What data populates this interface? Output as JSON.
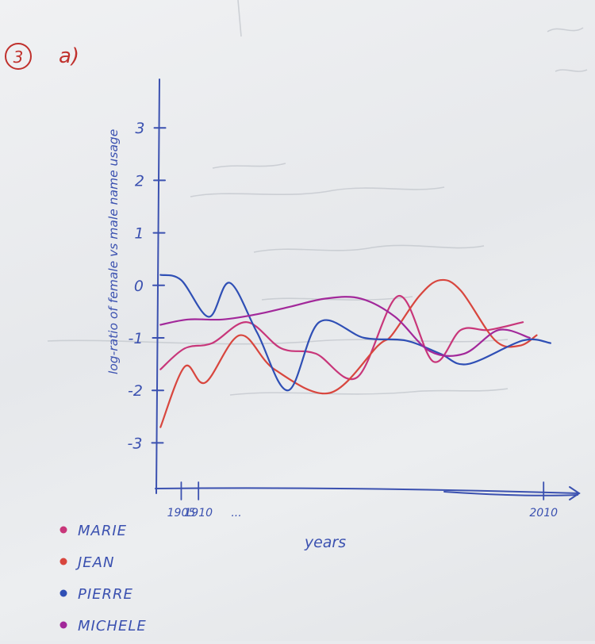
{
  "heading": {
    "number": "3",
    "part": "a)"
  },
  "chart_data": {
    "type": "line",
    "ylabel": "log-ratio of female vs male name usage",
    "xlabel": "years",
    "ylim": [
      -3.9,
      4
    ],
    "yticks": [
      "3",
      "2",
      "1",
      "0",
      "-1",
      "-2",
      "-3"
    ],
    "ytick_values": [
      3,
      2,
      1,
      0,
      -1,
      -2,
      -3
    ],
    "xlim": [
      1898,
      2018
    ],
    "xtick_labels": [
      {
        "label": "1905",
        "x": 1905
      },
      {
        "label": "1910",
        "x": 1910
      },
      {
        "label": "...",
        "x": 1921
      },
      {
        "label": "2010",
        "x": 2010
      }
    ],
    "series": [
      {
        "name": "MARIE",
        "color": "#c8367a",
        "x": [
          1899,
          1906,
          1914,
          1924,
          1934,
          1944,
          1956,
          1968,
          1978,
          1986,
          1994,
          2004
        ],
        "y": [
          -1.6,
          -1.2,
          -1.1,
          -0.7,
          -1.2,
          -1.3,
          -1.75,
          -0.2,
          -1.45,
          -0.85,
          -0.85,
          -0.7
        ]
      },
      {
        "name": "JEAN",
        "color": "#d8463e",
        "x": [
          1899,
          1906,
          1912,
          1922,
          1932,
          1948,
          1962,
          1966,
          1974,
          1980,
          1986,
          1996,
          2003,
          2008
        ],
        "y": [
          -2.7,
          -1.55,
          -1.85,
          -0.95,
          -1.6,
          -2.05,
          -1.15,
          -0.95,
          -0.2,
          0.1,
          -0.1,
          -1.05,
          -1.15,
          -0.95
        ]
      },
      {
        "name": "PIERRE",
        "color": "#2f4fb5",
        "x": [
          1899,
          1905,
          1913,
          1919,
          1927,
          1936,
          1945,
          1958,
          1970,
          1980,
          1988,
          2004,
          2012
        ],
        "y": [
          0.2,
          0.1,
          -0.6,
          0.05,
          -0.9,
          -2.0,
          -0.7,
          -1.0,
          -1.05,
          -1.3,
          -1.5,
          -1.05,
          -1.1
        ]
      },
      {
        "name": "MICHELE",
        "color": "#a2289a",
        "x": [
          1899,
          1907,
          1917,
          1927,
          1937,
          1947,
          1957,
          1967,
          1977,
          1987,
          1997,
          2006
        ],
        "y": [
          -0.75,
          -0.65,
          -0.65,
          -0.55,
          -0.4,
          -0.25,
          -0.25,
          -0.6,
          -1.25,
          -1.3,
          -0.85,
          -1.0
        ]
      }
    ]
  }
}
